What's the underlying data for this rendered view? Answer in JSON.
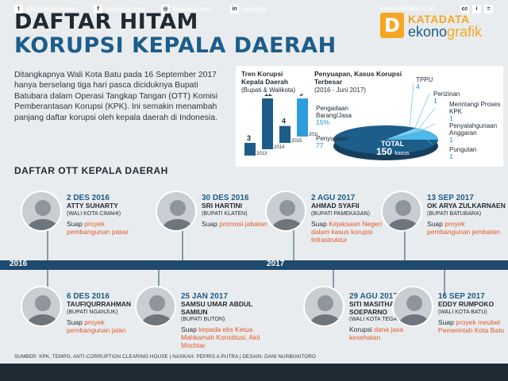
{
  "header": {
    "title_line1": "DAFTAR HITAM",
    "title_line2": "KORUPSI KEPALA DAERAH",
    "logo_letter": "D",
    "logo_top": "KATADATA",
    "logo_bottom_a": "ekono",
    "logo_bottom_b": "grafik"
  },
  "intro": "Ditangkapnya Wali Kota Batu pada 16 September 2017 hanya berselang tiga hari pasca diciduknya Bupati Batubara dalam Operasi Tangkap Tangan (OTT) Komisi Pemberantasan Korupsi (KPK). Ini semakin menambah panjang daftar korupsi oleh kepala daerah di Indonesia.",
  "section_title": "DAFTAR OTT KEPALA DAERAH",
  "trend": {
    "title": "Tren Korupsi Kepala Daerah",
    "subtitle": "(Bupati & Walikota)",
    "years": [
      "2013",
      "2014",
      "2015",
      "2016"
    ],
    "values": [
      3,
      12,
      4,
      9
    ]
  },
  "cases": {
    "title": "Penyuapan, Kasus Korupsi Terbesar",
    "subtitle": "(2016 - Juni 2017)",
    "total_label": "TOTAL",
    "total_value": "150",
    "total_unit": "kasus",
    "slices": [
      {
        "label": "Penyuapan",
        "value": "77"
      },
      {
        "label": "Pengadaan Barang/Jasa",
        "value": "15%"
      },
      {
        "label": "TPPU",
        "value": "4"
      },
      {
        "label": "Perizinan",
        "value": "1"
      },
      {
        "label": "Merintangi Proses KPK",
        "value": "1"
      },
      {
        "label": "Penyalahgunaan Anggaran",
        "value": "1"
      },
      {
        "label": "Pungutan",
        "value": "1"
      }
    ],
    "colors": {
      "main": "#1c5d8a",
      "light": "#4fb8e8"
    }
  },
  "timeline": {
    "year_left": "2016",
    "year_mid": "2017"
  },
  "people_top": [
    {
      "date": "2 DES 2016",
      "name": "ATTY SUHARTY",
      "role": "(WALI KOTA CIMAHI)",
      "case_a": "Suap ",
      "case_b": "proyek pembangunan pasar"
    },
    {
      "date": "30 DES 2016",
      "name": "SRI HARTINI",
      "role": "(BUPATI KLATEN)",
      "case_a": "Suap ",
      "case_b": "promosi jabatan"
    },
    {
      "date": "2 AGU 2017",
      "name": "AHMAD SYAFII",
      "role": "(BUPATI PAMEKASAN)",
      "case_a": "Suap ",
      "case_b": "Kejaksaan Negeri dalam kasus korupsi Infrastruktur"
    },
    {
      "date": "13 SEP 2017",
      "name": "OK ARYA ZULKARNAEN",
      "role": "(BUPATI BATUBARA)",
      "case_a": "Suap ",
      "case_b": "proyek pembangunan jembatan"
    }
  ],
  "people_bottom": [
    {
      "date": "6 DES 2016",
      "name": "TAUFIQURRAHMAN",
      "role": "(BUPATI NGANJUK)",
      "case_a": "Suap ",
      "case_b": "proyek pembangunan jalan"
    },
    {
      "date": "25 JAN 2017",
      "name": "SAMSU UMAR ABDUL SAMIUN",
      "role": "(BUPATI BUTON)",
      "case_a": "Suap ",
      "case_b": "kepada eks Ketua Mahkamah Konstitusi, Akil Mochtar"
    },
    {
      "date": "29 AGU 2017",
      "name": "SITI MASITHA SOEPARNO",
      "role": "(WALI KOTA TEGAL)",
      "case_a": "Korupsi ",
      "case_b": "dana jasa kesehatan"
    },
    {
      "date": "16 SEP 2017",
      "name": "EDDY RUMPOKO",
      "role": "(WALI KOTA BATU)",
      "case_a": "Suap ",
      "case_b": "proyek meubel Pemerintah Kota Batu"
    }
  ],
  "source": "SUMBER: KPK, TEMPO, ANTI-CORRUPTION CLEARING HOUSE | NASKAH: PEPRIS A PUTRA | DESAIN: DANI NURBIANTORO",
  "footer": {
    "twitter": "@KATADATAnews",
    "facebook": "katadatanews",
    "instagram": "katadatanews",
    "linkedin": "katadata",
    "website": "www.katadata.co.id"
  }
}
